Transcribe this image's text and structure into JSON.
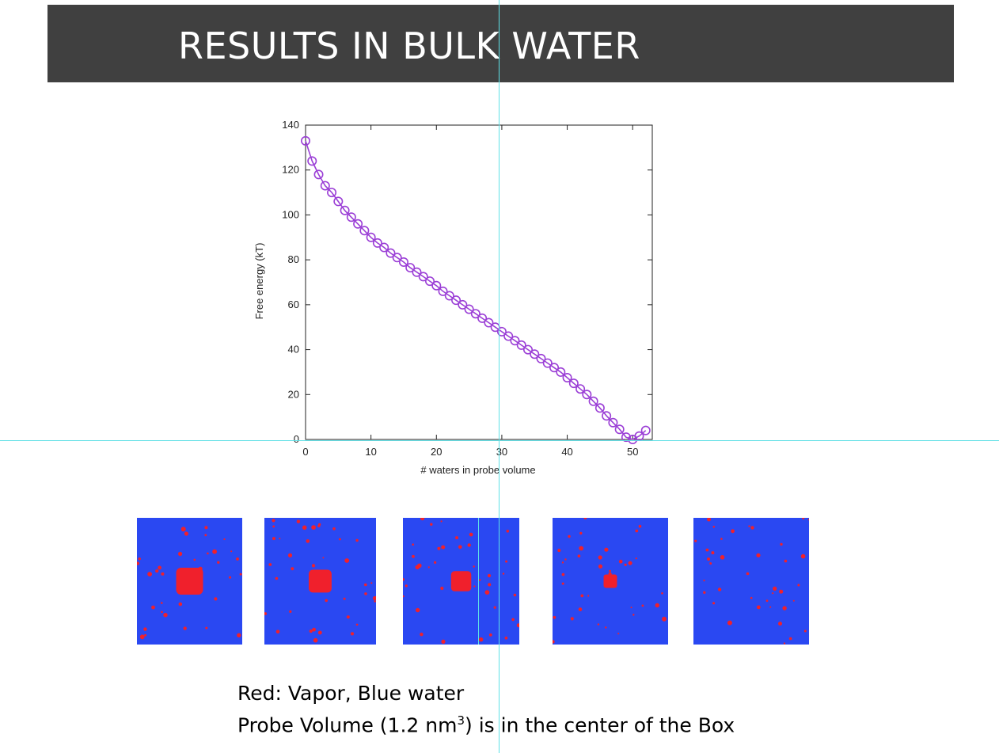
{
  "slide": {
    "title": "RESULTS IN BULK WATER"
  },
  "colors": {
    "title_bar": "#404040",
    "series": "#9b3fd6",
    "water": "#2a48f2",
    "vapor": "#f0202c",
    "guide": "#5ee0e6"
  },
  "chart_data": {
    "type": "line",
    "xlabel": "# waters in probe volume",
    "ylabel": "Free energy (kT)",
    "xlim": [
      0,
      53
    ],
    "ylim": [
      0,
      140
    ],
    "xticks": [
      0,
      10,
      20,
      30,
      40,
      50
    ],
    "yticks": [
      0,
      20,
      40,
      60,
      80,
      100,
      120,
      140
    ],
    "grid": false,
    "marker": "circle-open",
    "series": [
      {
        "x": [
          0,
          1,
          2,
          3,
          4,
          5,
          6,
          7,
          8,
          9,
          10,
          11,
          12,
          13,
          14,
          15,
          16,
          17,
          18,
          19,
          20,
          21,
          22,
          23,
          24,
          25,
          26,
          27,
          28,
          29,
          30,
          31,
          32,
          33,
          34,
          35,
          36,
          37,
          38,
          39,
          40,
          41,
          42,
          43,
          44,
          45,
          46,
          47,
          48,
          49,
          50,
          51,
          52
        ],
        "y": [
          133,
          124,
          118,
          113,
          110,
          106,
          102,
          99,
          96,
          93,
          90,
          87.5,
          85.5,
          83,
          81,
          79,
          76.5,
          74.5,
          72.5,
          70.5,
          68.5,
          66,
          64,
          62,
          60,
          58,
          56,
          54,
          52,
          50,
          48,
          46,
          44,
          42,
          40,
          38,
          36,
          34,
          32,
          30,
          27.5,
          25,
          22.5,
          20,
          17,
          14,
          10.5,
          7.5,
          4.5,
          1,
          0,
          1.5,
          4
        ]
      }
    ]
  },
  "snapshots": {
    "panels": [
      {
        "label": "snapshot-1",
        "cavity_size": 1.0
      },
      {
        "label": "snapshot-2",
        "cavity_size": 0.85
      },
      {
        "label": "snapshot-3",
        "cavity_size": 0.75
      },
      {
        "label": "snapshot-4",
        "cavity_size": 0.5
      },
      {
        "label": "snapshot-5",
        "cavity_size": 0.0
      }
    ]
  },
  "caption": {
    "line1": "Red: Vapor, Blue water",
    "line2_pre": "Probe Volume (1.2 nm",
    "line2_sup": "3",
    "line2_post": ") is in the center of the Box"
  }
}
